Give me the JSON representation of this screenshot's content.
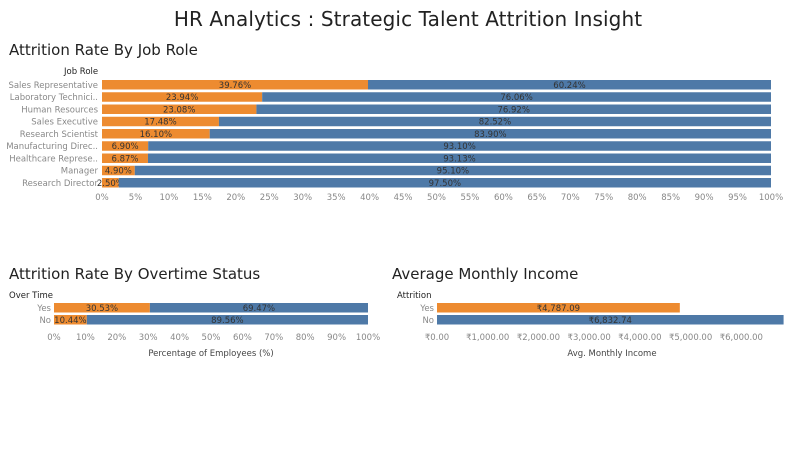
{
  "dashboard": {
    "title": "HR Analytics : Strategic Talent Attrition Insight",
    "colors": {
      "attrition": "#ed8b30",
      "retained": "#4e79a7"
    }
  },
  "chart_data": [
    {
      "id": "by_role",
      "type": "bar",
      "stacked": true,
      "orientation": "horizontal",
      "title": "Attrition Rate By Job Role",
      "row_header": "Job Role",
      "categories": [
        "Sales Representative",
        "Laboratory Technici..",
        "Human Resources",
        "Sales Executive",
        "Research Scientist",
        "Manufacturing Direc..",
        "Healthcare Represe..",
        "Manager",
        "Research Director"
      ],
      "series": [
        {
          "values": [
            39.76,
            23.94,
            23.08,
            17.48,
            16.1,
            6.9,
            6.87,
            4.9,
            2.5
          ],
          "labels": [
            "39.76%",
            "23.94%",
            "23.08%",
            "17.48%",
            "16.10%",
            "6.90%",
            "6.87%",
            "4.90%",
            "2.50%"
          ]
        },
        {
          "values": [
            60.24,
            76.06,
            76.92,
            82.52,
            83.9,
            93.1,
            93.13,
            95.1,
            97.5
          ],
          "labels": [
            "60.24%",
            "76.06%",
            "76.92%",
            "82.52%",
            "83.90%",
            "93.10%",
            "93.13%",
            "95.10%",
            "97.50%"
          ]
        }
      ],
      "xlim": [
        0,
        100
      ],
      "ticks": [
        0,
        5,
        10,
        15,
        20,
        25,
        30,
        35,
        40,
        45,
        50,
        55,
        60,
        65,
        70,
        75,
        80,
        85,
        90,
        95,
        100
      ],
      "tick_labels": [
        "0%",
        "5%",
        "10%",
        "15%",
        "20%",
        "25%",
        "30%",
        "35%",
        "40%",
        "45%",
        "50%",
        "55%",
        "60%",
        "65%",
        "70%",
        "75%",
        "80%",
        "85%",
        "90%",
        "95%",
        "100%"
      ],
      "xlabel": "",
      "grid": false,
      "legend": "none"
    },
    {
      "id": "overtime",
      "type": "bar",
      "stacked": true,
      "orientation": "horizontal",
      "title": "Attrition Rate By Overtime Status",
      "row_header": "Over Time",
      "categories": [
        "Yes",
        "No"
      ],
      "series": [
        {
          "values": [
            30.53,
            10.44
          ],
          "labels": [
            "30.53%",
            "10.44%"
          ]
        },
        {
          "values": [
            69.47,
            89.56
          ],
          "labels": [
            "69.47%",
            "89.56%"
          ]
        }
      ],
      "xlim": [
        0,
        100
      ],
      "ticks": [
        0,
        10,
        20,
        30,
        40,
        50,
        60,
        70,
        80,
        90,
        100
      ],
      "tick_labels": [
        "0%",
        "10%",
        "20%",
        "30%",
        "40%",
        "50%",
        "60%",
        "70%",
        "80%",
        "90%",
        "100%"
      ],
      "xlabel": "Percentage of Employees (%)",
      "grid": false,
      "legend": "none"
    },
    {
      "id": "income",
      "type": "bar",
      "stacked": false,
      "orientation": "horizontal",
      "title": "Average Monthly Income",
      "row_header": "Attrition",
      "categories": [
        "Yes",
        "No"
      ],
      "series": [
        {
          "values": [
            4787.09,
            6832.74
          ],
          "labels": [
            "₹4,787.09",
            "₹6,832.74"
          ]
        }
      ],
      "xlim": [
        0,
        6900
      ],
      "ticks": [
        0,
        1000,
        2000,
        3000,
        4000,
        5000,
        6000
      ],
      "tick_labels": [
        "₹0.00",
        "₹1,000.00",
        "₹2,000.00",
        "₹3,000.00",
        "₹4,000.00",
        "₹5,000.00",
        "₹6,000.00"
      ],
      "xlabel": "Avg. Monthly Income",
      "grid": false,
      "legend": "none"
    }
  ]
}
